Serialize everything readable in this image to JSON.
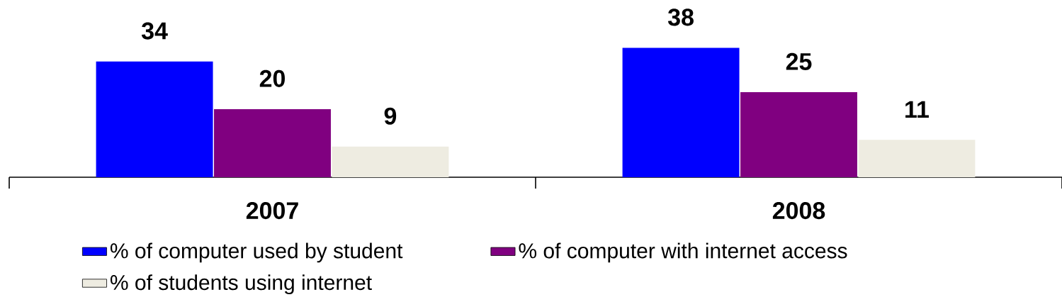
{
  "chart_data": {
    "type": "bar",
    "categories": [
      "2007",
      "2008"
    ],
    "series": [
      {
        "name": "% of computer used by student",
        "color": "#0000ff",
        "values": [
          34,
          38
        ]
      },
      {
        "name": "% of computer with internet access",
        "color": "#800080",
        "values": [
          20,
          25
        ]
      },
      {
        "name": "% of students using internet",
        "color": "#eeece1",
        "values": [
          9,
          11
        ]
      }
    ],
    "data_labels": true,
    "legend": "bottom"
  }
}
